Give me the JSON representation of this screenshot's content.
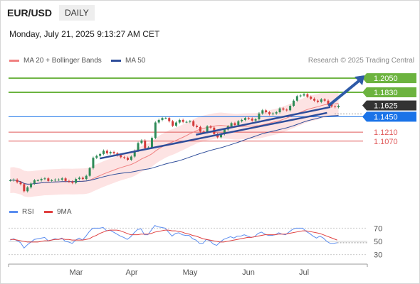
{
  "header": {
    "pair": "EUR/USD",
    "timeframe": "DAILY"
  },
  "datetime": "Monday, July 21, 2025 9:13:27 AM CET",
  "legend": {
    "ma20_label": "MA 20 + Bollinger Bands",
    "ma50_label": "MA 50",
    "rsi_label": "RSI",
    "ma9_label": "9MA"
  },
  "copyright": "Research © 2025 Trading Central",
  "colors": {
    "ma20": "#f08080",
    "ma50": "#2e4d9a",
    "bollinger_fill": "#fde3e3",
    "resistance": "#6cb33f",
    "support": "#e05a5a",
    "pivot": "#1a73e8",
    "current": "#333333",
    "candle_up": "#2e8b57",
    "candle_down": "#d33a3a",
    "rsi": "#5b8def",
    "rsi_ma": "#e04040"
  },
  "chart_data": {
    "type": "candlestick",
    "x_months": [
      "Mar",
      "Apr",
      "May",
      "Jun",
      "Jul"
    ],
    "ylim": [
      1.015,
      1.225
    ],
    "levels": [
      {
        "value": 1.205,
        "label": "1.2050",
        "kind": "resistance"
      },
      {
        "value": 1.183,
        "label": "1.1830",
        "kind": "resistance"
      },
      {
        "value": 1.1625,
        "label": "1.1625",
        "kind": "current"
      },
      {
        "value": 1.145,
        "label": "1.1450",
        "kind": "pivot"
      },
      {
        "value": 1.121,
        "label": "1.1210",
        "kind": "support"
      },
      {
        "value": 1.107,
        "label": "1.1070",
        "kind": "support"
      }
    ],
    "closes": [
      1.046,
      1.047,
      1.043,
      1.04,
      1.029,
      1.035,
      1.041,
      1.046,
      1.046,
      1.048,
      1.049,
      1.045,
      1.046,
      1.047,
      1.047,
      1.049,
      1.045,
      1.044,
      1.042,
      1.048,
      1.05,
      1.048,
      1.053,
      1.065,
      1.081,
      1.084,
      1.087,
      1.092,
      1.088,
      1.09,
      1.088,
      1.085,
      1.082,
      1.081,
      1.078,
      1.083,
      1.092,
      1.104,
      1.108,
      1.096,
      1.097,
      1.112,
      1.136,
      1.14,
      1.143,
      1.143,
      1.138,
      1.131,
      1.136,
      1.14,
      1.137,
      1.137,
      1.138,
      1.131,
      1.129,
      1.122,
      1.121,
      1.13,
      1.128,
      1.118,
      1.113,
      1.118,
      1.125,
      1.13,
      1.135,
      1.132,
      1.138,
      1.14,
      1.143,
      1.142,
      1.139,
      1.141,
      1.15,
      1.155,
      1.152,
      1.149,
      1.15,
      1.152,
      1.158,
      1.156,
      1.155,
      1.162,
      1.17,
      1.177,
      1.178,
      1.18,
      1.176,
      1.173,
      1.17,
      1.168,
      1.172,
      1.17,
      1.165,
      1.161,
      1.16,
      1.162
    ],
    "bollinger": {
      "upper_at": 0.02,
      "lower_at": 0.02
    },
    "trendlines": [
      {
        "from": [
          0.275,
          1.08
        ],
        "to": [
          0.96,
          1.151
        ]
      },
      {
        "from": [
          0.565,
          1.117
        ],
        "to": [
          0.97,
          1.16
        ]
      }
    ],
    "projection": {
      "from": [
        0.96,
        1.162
      ],
      "to": [
        1.0,
        1.205
      ]
    },
    "rsi": {
      "ylim": [
        20,
        80
      ],
      "ticks": [
        70,
        50,
        30
      ],
      "values": [
        52,
        54,
        51,
        48,
        40,
        45,
        49,
        53,
        54,
        55,
        56,
        51,
        52,
        54,
        53,
        55,
        50,
        49,
        47,
        52,
        55,
        52,
        58,
        65,
        70,
        70,
        70,
        71,
        66,
        67,
        64,
        61,
        58,
        56,
        53,
        57,
        63,
        68,
        69,
        60,
        60,
        67,
        74,
        72,
        71,
        70,
        64,
        58,
        62,
        63,
        60,
        59,
        59,
        54,
        52,
        47,
        47,
        53,
        51,
        46,
        44,
        49,
        53,
        55,
        57,
        55,
        58,
        58,
        60,
        58,
        56,
        57,
        62,
        64,
        61,
        59,
        59,
        60,
        63,
        61,
        60,
        64,
        68,
        70,
        70,
        70,
        65,
        62,
        58,
        55,
        58,
        55,
        50,
        47,
        47,
        48
      ],
      "ma9": [
        53,
        53,
        52,
        51,
        50,
        49,
        49,
        49,
        49,
        50,
        51,
        51,
        52,
        53,
        53,
        54,
        53,
        53,
        52,
        52,
        52,
        52,
        53,
        54,
        57,
        59,
        62,
        64,
        66,
        67,
        67,
        67,
        66,
        64,
        62,
        60,
        60,
        60,
        61,
        61,
        61,
        62,
        64,
        65,
        66,
        67,
        67,
        66,
        66,
        65,
        64,
        62,
        61,
        59,
        58,
        56,
        54,
        53,
        52,
        51,
        50,
        49,
        49,
        50,
        51,
        52,
        53,
        54,
        55,
        56,
        56,
        57,
        58,
        59,
        60,
        60,
        60,
        60,
        61,
        61,
        61,
        62,
        63,
        64,
        65,
        66,
        66,
        65,
        64,
        63,
        62,
        60,
        58,
        56,
        54,
        52
      ]
    }
  }
}
